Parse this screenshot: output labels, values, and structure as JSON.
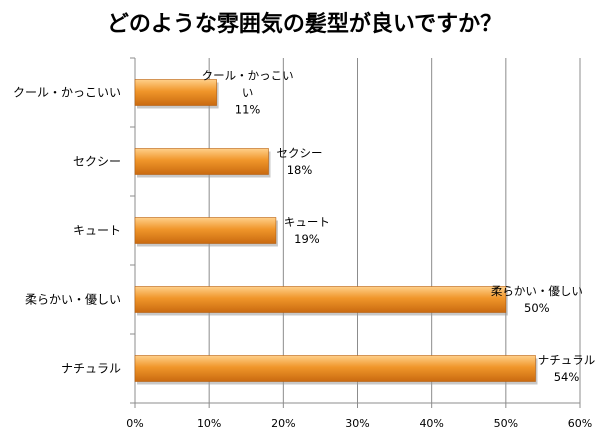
{
  "chart_data": {
    "type": "bar",
    "orientation": "horizontal",
    "title": "どのような雰囲気の髪型が良いですか？",
    "categories": [
      "クール・かっこいい",
      "セクシー",
      "キュート",
      "柔らかい・優しい",
      "ナチュラル"
    ],
    "values": [
      11,
      18,
      19,
      50,
      54
    ],
    "data_labels": [
      {
        "name_lines": [
          "クール・かっこい",
          "い"
        ],
        "pct": "11%"
      },
      {
        "name_lines": [
          "セクシー"
        ],
        "pct": "18%"
      },
      {
        "name_lines": [
          "キュート"
        ],
        "pct": "19%"
      },
      {
        "name_lines": [
          "柔らかい・優しい"
        ],
        "pct": "50%"
      },
      {
        "name_lines": [
          "ナチュラル"
        ],
        "pct": "54%"
      }
    ],
    "x_ticks": [
      "0%",
      "10%",
      "20%",
      "30%",
      "40%",
      "50%",
      "60%"
    ],
    "xlim": [
      0,
      60
    ],
    "grid": true,
    "bar_color": "#f0962a",
    "bar_color_light": "#ffd08a",
    "bar_color_dark": "#c96a10",
    "xlabel": "",
    "ylabel": ""
  }
}
